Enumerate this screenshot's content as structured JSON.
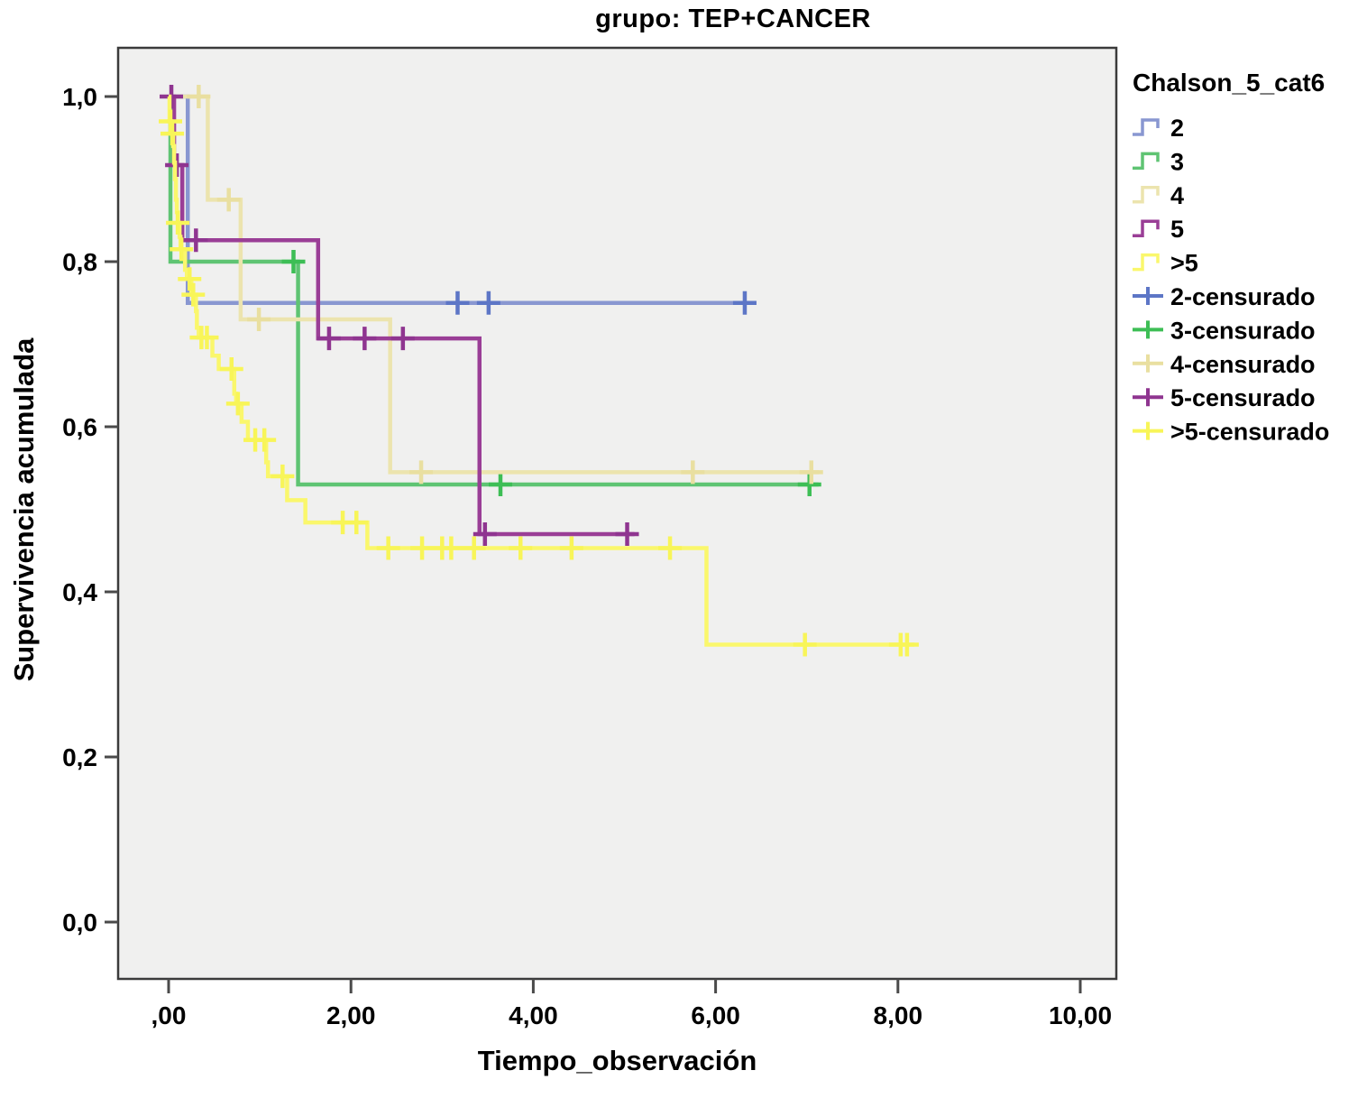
{
  "chart": {
    "title": "grupo: TEP+CANCER",
    "x_axis": {
      "label": "Tiempo_observación",
      "tick_labels": [
        ",00",
        "2,00",
        "4,00",
        "6,00",
        "8,00",
        "10,00"
      ],
      "tick_values": [
        0,
        2,
        4,
        6,
        8,
        10
      ]
    },
    "y_axis": {
      "label": "Supervivencia acumulada",
      "tick_labels": [
        "0,0",
        "0,2",
        "0,4",
        "0,6",
        "0,8",
        "1,0"
      ],
      "tick_values": [
        0,
        0.2,
        0.4,
        0.6,
        0.8,
        1.0
      ]
    },
    "legend": {
      "title": "Chalson_5_cat6",
      "line_labels": [
        "2",
        "3",
        "4",
        "5",
        ">5"
      ],
      "censor_labels": [
        "2-censurado",
        "3-censurado",
        "4-censurado",
        "5-censurado",
        ">5-censurado"
      ]
    },
    "colors": {
      "plot_background": "#F0F0EF",
      "frame": "#3B3B3B",
      "tick": "#4A4A4A",
      "text": "#000000"
    }
  },
  "chart_data": {
    "type": "line",
    "subtype": "kaplan-meier-step-survival",
    "title": "grupo: TEP+CANCER",
    "xlabel": "Tiempo_observación",
    "ylabel": "Supervivencia acumulada",
    "xlim": [
      0,
      10.4
    ],
    "ylim": [
      0,
      1.05
    ],
    "grid": false,
    "legend_position": "right",
    "legend_title": "Chalson_5_cat6",
    "series": [
      {
        "name": "2",
        "censored_name": "2-censurado",
        "line_color": "#8997D1",
        "censor_color": "#5D76C6",
        "start_value": 1.0,
        "drops": [
          [
            0.21,
            0.75
          ]
        ],
        "end_time": 6.43,
        "censored": [
          [
            3.17,
            0.75
          ],
          [
            3.51,
            0.75
          ],
          [
            6.32,
            0.75
          ]
        ]
      },
      {
        "name": "3",
        "censored_name": "3-censurado",
        "line_color": "#5FC473",
        "censor_color": "#3DBE55",
        "start_value": 1.0,
        "drops": [
          [
            0.02,
            0.8
          ],
          [
            1.42,
            0.53
          ]
        ],
        "end_time": 7.13,
        "censored": [
          [
            1.37,
            0.8
          ],
          [
            3.64,
            0.53
          ],
          [
            7.03,
            0.53
          ]
        ]
      },
      {
        "name": "4",
        "censored_name": "4-censurado",
        "line_color": "#ECE4AE",
        "censor_color": "#E9DFA0",
        "start_value": 1.0,
        "drops": [
          [
            0.43,
            0.875
          ],
          [
            0.79,
            0.73
          ],
          [
            2.43,
            0.545
          ]
        ],
        "end_time": 7.13,
        "censored": [
          [
            0.33,
            1.0
          ],
          [
            0.66,
            0.875
          ],
          [
            0.99,
            0.73
          ],
          [
            2.77,
            0.545
          ],
          [
            5.75,
            0.545
          ],
          [
            7.05,
            0.545
          ]
        ]
      },
      {
        "name": "5",
        "censored_name": "5-censurado",
        "line_color": "#9A3E96",
        "censor_color": "#8F3590",
        "start_value": 1.0,
        "drops": [
          [
            0.06,
            0.917
          ],
          [
            0.15,
            0.826
          ],
          [
            1.64,
            0.707
          ],
          [
            3.41,
            0.47
          ]
        ],
        "end_time": 5.11,
        "censored": [
          [
            0.03,
            1.0
          ],
          [
            0.09,
            0.917
          ],
          [
            0.3,
            0.826
          ],
          [
            1.76,
            0.707
          ],
          [
            2.15,
            0.707
          ],
          [
            2.57,
            0.707
          ],
          [
            3.47,
            0.47
          ],
          [
            5.03,
            0.47
          ]
        ]
      },
      {
        "name": ">5",
        "censored_name": ">5-censurado",
        "line_color": "#FAF76C",
        "censor_color": "#F8F558",
        "start_value": 1.0,
        "drops": [
          [
            0.01,
            0.97
          ],
          [
            0.03,
            0.955
          ],
          [
            0.05,
            0.94
          ],
          [
            0.06,
            0.92
          ],
          [
            0.07,
            0.9
          ],
          [
            0.08,
            0.875
          ],
          [
            0.09,
            0.86
          ],
          [
            0.1,
            0.847
          ],
          [
            0.12,
            0.83
          ],
          [
            0.13,
            0.815
          ],
          [
            0.18,
            0.79
          ],
          [
            0.2,
            0.779
          ],
          [
            0.25,
            0.76
          ],
          [
            0.3,
            0.74
          ],
          [
            0.31,
            0.72
          ],
          [
            0.33,
            0.708
          ],
          [
            0.48,
            0.686
          ],
          [
            0.55,
            0.67
          ],
          [
            0.72,
            0.64
          ],
          [
            0.74,
            0.628
          ],
          [
            0.8,
            0.606
          ],
          [
            0.87,
            0.584
          ],
          [
            1.07,
            0.557
          ],
          [
            1.09,
            0.54
          ],
          [
            1.3,
            0.511
          ],
          [
            1.5,
            0.484
          ],
          [
            2.18,
            0.453
          ],
          [
            5.9,
            0.336
          ]
        ],
        "end_time": 8.18,
        "censored": [
          [
            0.02,
            0.97
          ],
          [
            0.04,
            0.955
          ],
          [
            0.1,
            0.847
          ],
          [
            0.14,
            0.815
          ],
          [
            0.23,
            0.779
          ],
          [
            0.27,
            0.76
          ],
          [
            0.36,
            0.708
          ],
          [
            0.42,
            0.708
          ],
          [
            0.69,
            0.67
          ],
          [
            0.76,
            0.628
          ],
          [
            0.95,
            0.584
          ],
          [
            1.05,
            0.584
          ],
          [
            1.25,
            0.54
          ],
          [
            1.91,
            0.484
          ],
          [
            2.06,
            0.484
          ],
          [
            2.41,
            0.453
          ],
          [
            2.78,
            0.453
          ],
          [
            3.0,
            0.453
          ],
          [
            3.1,
            0.453
          ],
          [
            3.35,
            0.453
          ],
          [
            3.86,
            0.453
          ],
          [
            4.42,
            0.453
          ],
          [
            5.5,
            0.453
          ],
          [
            6.98,
            0.336
          ],
          [
            8.03,
            0.336
          ],
          [
            8.1,
            0.336
          ]
        ]
      }
    ]
  }
}
